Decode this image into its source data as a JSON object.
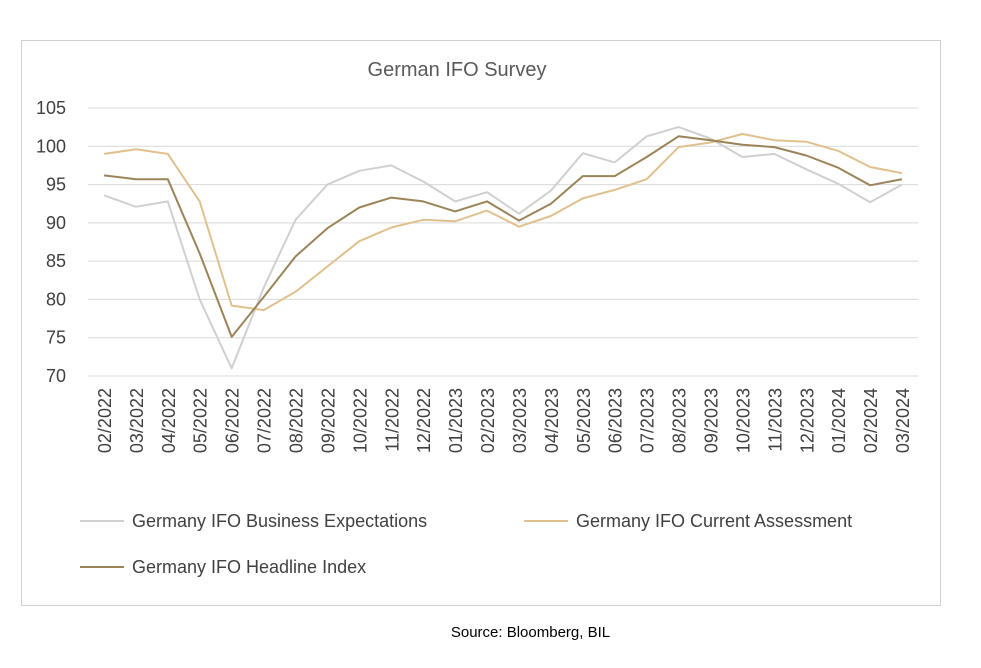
{
  "chart_data": {
    "type": "line",
    "title": "German IFO Survey",
    "categories": [
      "02/2022",
      "03/2022",
      "04/2022",
      "05/2022",
      "06/2022",
      "07/2022",
      "08/2022",
      "09/2022",
      "10/2022",
      "11/2022",
      "12/2022",
      "01/2023",
      "02/2023",
      "03/2023",
      "04/2023",
      "05/2023",
      "06/2023",
      "07/2023",
      "08/2023",
      "09/2023",
      "10/2023",
      "11/2023",
      "12/2023",
      "01/2024",
      "02/2024",
      "03/2024"
    ],
    "ylim": [
      70,
      105
    ],
    "yticks": [
      70,
      75,
      80,
      85,
      90,
      95,
      100,
      105
    ],
    "grid": true,
    "legend_position": "bottom",
    "series": [
      {
        "name": "Germany IFO Business Expectations",
        "color": "#d0d0d0",
        "values": [
          93.6,
          92.1,
          92.8,
          80.0,
          71.0,
          81.5,
          90.4,
          95.0,
          96.8,
          97.5,
          95.4,
          92.8,
          94.0,
          91.2,
          94.2,
          99.1,
          97.9,
          101.3,
          102.5,
          101.0,
          98.6,
          99.0,
          97.0,
          95.1,
          92.7,
          95.0
        ]
      },
      {
        "name": "Germany IFO Current Assessment",
        "color": "#e0c18d",
        "values": [
          99.0,
          99.6,
          99.0,
          92.8,
          79.2,
          78.6,
          81.0,
          84.3,
          87.6,
          89.4,
          90.4,
          90.2,
          91.6,
          89.5,
          90.9,
          93.2,
          94.3,
          95.7,
          99.9,
          100.5,
          101.6,
          100.8,
          100.6,
          99.4,
          97.3,
          96.5
        ]
      },
      {
        "name": "Germany IFO Headline Index",
        "color": "#9b8458",
        "values": [
          96.2,
          95.7,
          95.7,
          86.0,
          75.1,
          80.3,
          85.6,
          89.3,
          92.0,
          93.3,
          92.8,
          91.5,
          92.8,
          90.3,
          92.5,
          96.1,
          96.1,
          98.6,
          101.3,
          100.8,
          100.2,
          99.9,
          98.8,
          97.2,
          94.9,
          95.7
        ]
      }
    ]
  },
  "source": "Source: Bloomberg, BIL"
}
